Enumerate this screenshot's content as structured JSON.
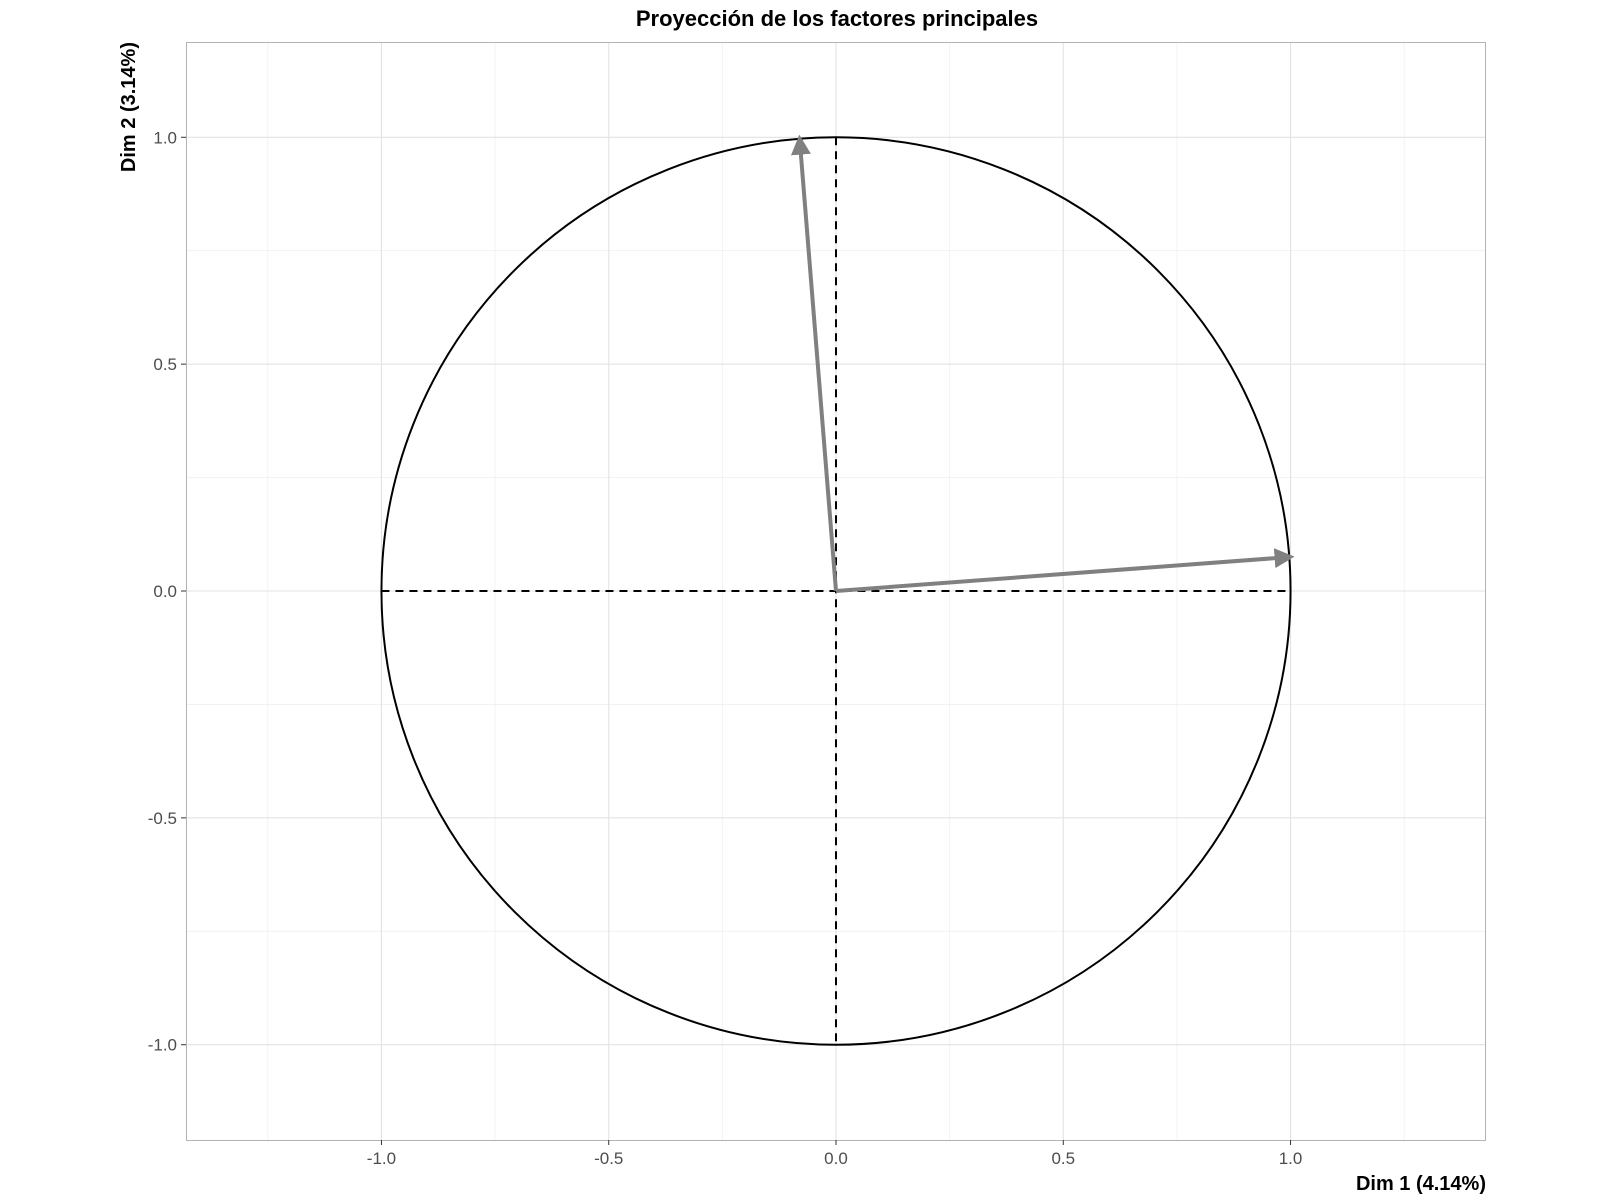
{
  "chart_data": {
    "type": "scatter",
    "subtype": "correlation-circle",
    "title": "Proyección de los factores principales",
    "xlabel": "Dim 1 (4.14%)",
    "ylabel": "Dim 2 (3.14%)",
    "xlim": [
      -1.43,
      1.43
    ],
    "ylim": [
      -1.21,
      1.21
    ],
    "x_ticks": [
      -1.0,
      -0.5,
      0.0,
      0.5,
      1.0
    ],
    "x_tick_labels": [
      "-1.0",
      "-0.5",
      "0.0",
      "0.5",
      "1.0"
    ],
    "y_ticks": [
      -1.0,
      -0.5,
      0.0,
      0.5,
      1.0
    ],
    "y_tick_labels": [
      "-1.0",
      "-0.5",
      "0.0",
      "0.5",
      "1.0"
    ],
    "grid": true,
    "circle_radius": 1.0,
    "reference_lines": [
      "x=0",
      "y=0"
    ],
    "vectors": [
      {
        "x": 1.0,
        "y": 0.075
      },
      {
        "x": -0.08,
        "y": 0.997
      }
    ],
    "colors": {
      "vector": "#808080",
      "circle": "#000000",
      "grid": "#e3e3e3",
      "panel_border": "#b3b3b3"
    }
  }
}
